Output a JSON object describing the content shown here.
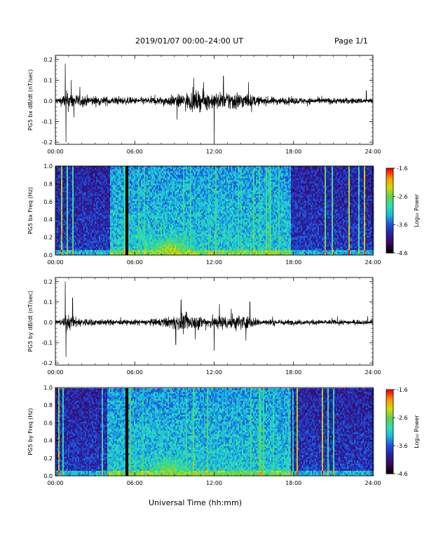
{
  "header": {
    "title": "2019/01/07  00:00–24:00 UT",
    "page": "Page 1/1"
  },
  "footer": {
    "xlabel": "Universal Time (hh:mm)"
  },
  "colors": {
    "axis": "#000000",
    "waveform": "#000000",
    "colormap": [
      "#000000",
      "#3a0a5a",
      "#2a1fa0",
      "#1e50d8",
      "#18b4e6",
      "#30e0b0",
      "#5cd250",
      "#d2dc00",
      "#ff9600",
      "#ff0000"
    ]
  },
  "chart_data": [
    {
      "type": "line",
      "ylabel": "PG5 bx dB/dt (nT/sec)",
      "xticks": [
        "00:00",
        "06:00",
        "12:00",
        "18:00",
        "24:00"
      ],
      "yticks": [
        "-0.2",
        "-0.1",
        "0.0",
        "0.1",
        "0.2"
      ],
      "xlim": [
        0,
        24
      ],
      "ylim": [
        -0.21,
        0.22
      ],
      "units_x": "hours UT",
      "baseline_noise": 0.012,
      "envelope": [
        [
          0,
          0.015
        ],
        [
          0.5,
          0.03
        ],
        [
          0.9,
          0.06
        ],
        [
          1.5,
          0.04
        ],
        [
          2.5,
          0.03
        ],
        [
          4,
          0.025
        ],
        [
          6,
          0.02
        ],
        [
          8,
          0.025
        ],
        [
          9.5,
          0.04
        ],
        [
          10.5,
          0.06
        ],
        [
          11.5,
          0.05
        ],
        [
          12.5,
          0.05
        ],
        [
          13.5,
          0.06
        ],
        [
          14.5,
          0.04
        ],
        [
          15.5,
          0.025
        ],
        [
          18,
          0.02
        ],
        [
          20,
          0.018
        ],
        [
          22,
          0.018
        ],
        [
          24,
          0.015
        ]
      ],
      "spikes": [
        [
          0.75,
          0.18
        ],
        [
          0.8,
          -0.2
        ],
        [
          1.2,
          0.1
        ],
        [
          1.4,
          -0.08
        ],
        [
          9.2,
          -0.09
        ],
        [
          11.2,
          0.09
        ],
        [
          12.0,
          -0.2
        ],
        [
          12.7,
          0.12
        ],
        [
          14.6,
          0.09
        ],
        [
          23.5,
          0.05
        ]
      ]
    },
    {
      "type": "heatmap",
      "ylabel": "PG5 bx Freq (Hz)",
      "xticks": [
        "00:00",
        "06:00",
        "12:00",
        "18:00",
        "24:00"
      ],
      "yticks": [
        "0.0",
        "0.2",
        "0.4",
        "0.6",
        "0.8",
        "1.0"
      ],
      "xlim": [
        0,
        24
      ],
      "ylim": [
        0,
        1.0
      ],
      "colorbar": {
        "label": "Log₁₀ Power",
        "ticks": [
          "-1.6",
          "-2.6",
          "-3.6",
          "-4.6"
        ],
        "range": [
          -4.6,
          -1.6
        ]
      },
      "data_gaps_hours": [
        [
          5.3,
          5.5
        ]
      ],
      "active_period_hours": [
        4.1,
        17.8
      ],
      "hotspots": [
        [
          8.7,
          0.05,
          -2.4
        ],
        [
          15.6,
          0.3,
          -3.2
        ]
      ]
    },
    {
      "type": "line",
      "ylabel": "PG5 by dB/dt (nT/sec)",
      "xticks": [
        "00:00",
        "06:00",
        "12:00",
        "18:00",
        "24:00"
      ],
      "yticks": [
        "-0.2",
        "-0.1",
        "0.0",
        "0.1",
        "0.2"
      ],
      "xlim": [
        0,
        24
      ],
      "ylim": [
        -0.21,
        0.22
      ],
      "units_x": "hours UT",
      "baseline_noise": 0.01,
      "envelope": [
        [
          0,
          0.012
        ],
        [
          0.5,
          0.02
        ],
        [
          0.9,
          0.05
        ],
        [
          1.5,
          0.03
        ],
        [
          3,
          0.02
        ],
        [
          5,
          0.015
        ],
        [
          7,
          0.018
        ],
        [
          8.5,
          0.03
        ],
        [
          9.5,
          0.05
        ],
        [
          10.5,
          0.045
        ],
        [
          11.5,
          0.035
        ],
        [
          12.5,
          0.04
        ],
        [
          13.5,
          0.05
        ],
        [
          14.5,
          0.04
        ],
        [
          15.5,
          0.02
        ],
        [
          18,
          0.015
        ],
        [
          21,
          0.015
        ],
        [
          24,
          0.012
        ]
      ],
      "spikes": [
        [
          0.75,
          0.2
        ],
        [
          0.8,
          -0.17
        ],
        [
          1.3,
          0.12
        ],
        [
          9.1,
          -0.11
        ],
        [
          9.5,
          0.11
        ],
        [
          12.0,
          -0.14
        ],
        [
          12.4,
          0.09
        ],
        [
          14.4,
          -0.09
        ],
        [
          14.7,
          0.1
        ],
        [
          23.6,
          0.03
        ]
      ]
    },
    {
      "type": "heatmap",
      "ylabel": "PG5 by Freq (Hz)",
      "xticks": [
        "00:00",
        "06:00",
        "12:00",
        "18:00",
        "24:00"
      ],
      "yticks": [
        "0.0",
        "0.2",
        "0.4",
        "0.6",
        "0.8",
        "1.0"
      ],
      "xlim": [
        0,
        24
      ],
      "ylim": [
        0,
        1.0
      ],
      "colorbar": {
        "label": "Log₁₀ Power",
        "ticks": [
          "-1.6",
          "-2.6",
          "-3.6",
          "-4.6"
        ],
        "range": [
          -4.6,
          -1.6
        ]
      },
      "data_gaps_hours": [
        [
          5.3,
          5.5
        ]
      ],
      "active_period_hours": [
        3.9,
        17.8
      ],
      "hotspots": [
        [
          8.7,
          0.05,
          -2.6
        ],
        [
          15.0,
          0.15,
          -3.4
        ]
      ]
    }
  ]
}
